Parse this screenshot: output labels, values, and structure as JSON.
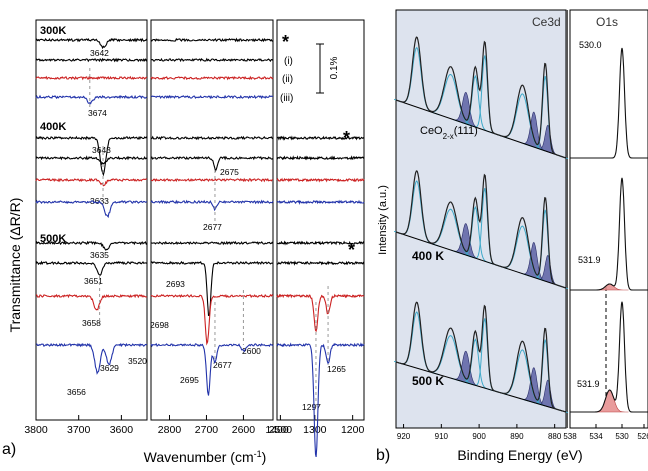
{
  "panel_a": {
    "panel_label": "a)",
    "y_label": "Transmittance (ΔR/R)",
    "x_label": "Wavenumber (cm",
    "x_label_sup": "-1",
    "x_label_close": ")",
    "scale_bar_label": "0.1%",
    "star": "*",
    "traces_300K": [
      "(i)",
      "(ii)",
      "(iii)"
    ],
    "temperature_labels": [
      "300K",
      "400K",
      "500K"
    ],
    "x_ticks_left": [
      "3800",
      "3700",
      "3600"
    ],
    "x_ticks_mid": [
      "2800",
      "2700",
      "2600",
      "2500"
    ],
    "x_ticks_right": [
      "1400",
      "1300",
      "1200"
    ],
    "peak_labels": {
      "p300_3642": "3642",
      "p300_3674": "3674",
      "p400_3643": "3643",
      "p400_3633": "3633",
      "p400_2675": "2675",
      "p400_2677": "2677",
      "p500_3635": "3635",
      "p500_3651": "3651",
      "p500_3658": "3658",
      "p500_3656": "3656",
      "p500_3629": "3629",
      "p500_3520": "3520",
      "p500_2693": "2693",
      "p500_2698": "2698",
      "p500_2695": "2695",
      "p500_2677": "2677",
      "p500_2600": "2600",
      "p500_1265": "1265",
      "p500_1297": "1297"
    }
  },
  "panel_b": {
    "panel_label": "b)",
    "y_label": "Intensity (a.u.)",
    "x_label": "Binding Energy (eV)",
    "region_ce": "Ce3d",
    "region_o": "O1s",
    "sample_label": "CeO",
    "sample_sub": "2-x",
    "sample_tail": "(111)",
    "label_400": "400 K",
    "label_500": "500 K",
    "o_peak_530": "530.0",
    "o_peak_5319a": "531.9",
    "o_peak_5319b": "531.9",
    "x_ticks_ce": [
      "920",
      "910",
      "900",
      "890",
      "880"
    ],
    "x_ticks_o": [
      "538",
      "534",
      "530",
      "526"
    ]
  },
  "chart_data": [
    {
      "type": "line",
      "panel": "a",
      "title": "",
      "xlabel": "Wavenumber (cm-1)",
      "ylabel": "Transmittance (ΔR/R)",
      "x_axis_reversed": true,
      "x_segments": [
        [
          3800,
          3540
        ],
        [
          2850,
          2520
        ],
        [
          1400,
          1170
        ]
      ],
      "scale_bar_percent": 0.1,
      "series": [
        {
          "temperature": "300K",
          "trace": "*",
          "color": "#000000",
          "peaks": [
            {
              "x": 3642,
              "depth": 0.06
            }
          ]
        },
        {
          "temperature": "300K",
          "trace": "(i)",
          "color": "#000000",
          "peaks": []
        },
        {
          "temperature": "300K",
          "trace": "(ii)",
          "color": "#cc2222",
          "peaks": []
        },
        {
          "temperature": "300K",
          "trace": "(iii)",
          "color": "#2233aa",
          "peaks": [
            {
              "x": 3674,
              "depth": 0.05
            }
          ]
        },
        {
          "temperature": "400K",
          "trace": "*",
          "color": "#000000",
          "peaks": [
            {
              "x": 3643,
              "depth": 0.3
            }
          ]
        },
        {
          "temperature": "400K",
          "trace": "(i)",
          "color": "#000000",
          "peaks": [
            {
              "x": 3643,
              "depth": 0.05
            },
            {
              "x": 2675,
              "depth": 0.1
            }
          ]
        },
        {
          "temperature": "400K",
          "trace": "(ii)",
          "color": "#cc2222",
          "peaks": [
            {
              "x": 3643,
              "depth": 0.04
            }
          ]
        },
        {
          "temperature": "400K",
          "trace": "(iii)",
          "color": "#2233aa",
          "peaks": [
            {
              "x": 3633,
              "depth": 0.12
            },
            {
              "x": 2677,
              "depth": 0.06
            }
          ]
        },
        {
          "temperature": "500K",
          "trace": "*",
          "color": "#000000",
          "peaks": [
            {
              "x": 3635,
              "depth": 0.06
            }
          ]
        },
        {
          "temperature": "500K",
          "trace": "(i)",
          "color": "#000000",
          "peaks": [
            {
              "x": 3651,
              "depth": 0.1
            },
            {
              "x": 2693,
              "depth": 0.45
            }
          ]
        },
        {
          "temperature": "500K",
          "trace": "(ii)",
          "color": "#cc2222",
          "peaks": [
            {
              "x": 3658,
              "depth": 0.12
            },
            {
              "x": 2698,
              "depth": 0.4
            },
            {
              "x": 1297,
              "depth": 0.3
            },
            {
              "x": 1265,
              "depth": 0.15
            }
          ]
        },
        {
          "temperature": "500K",
          "trace": "(iii)",
          "color": "#2233aa",
          "peaks": [
            {
              "x": 3656,
              "depth": 0.23
            },
            {
              "x": 3629,
              "depth": 0.16
            },
            {
              "x": 3520,
              "depth": 0.02
            },
            {
              "x": 2695,
              "depth": 0.42
            },
            {
              "x": 2677,
              "depth": 0.15
            },
            {
              "x": 2600,
              "depth": 0.05
            },
            {
              "x": 1297,
              "depth": 0.93
            },
            {
              "x": 1265,
              "depth": 0.15
            }
          ]
        }
      ]
    },
    {
      "type": "line",
      "panel": "b",
      "title": "",
      "xlabel": "Binding Energy (eV)",
      "ylabel": "Intensity (a.u.)",
      "x_axis_reversed": true,
      "x_segments": [
        [
          922,
          877
        ],
        [
          538,
          526
        ]
      ],
      "series": [
        {
          "name": "CeO2-x(111)",
          "region": "Ce3d",
          "peaks_eV": [
            916.5,
            907.5,
            901,
            898.5,
            888.5,
            882.5
          ]
        },
        {
          "name": "CeO2-x(111)",
          "region": "O1s",
          "peaks_eV": [
            530.0
          ]
        },
        {
          "name": "400 K",
          "region": "Ce3d",
          "peaks_eV": [
            916.5,
            907.5,
            901,
            898.5,
            888.5,
            882.5
          ]
        },
        {
          "name": "400 K",
          "region": "O1s",
          "peaks_eV": [
            530.0,
            531.9
          ]
        },
        {
          "name": "500 K",
          "region": "Ce3d",
          "peaks_eV": [
            916.5,
            907.5,
            901,
            898.5,
            888.5,
            882.5
          ]
        },
        {
          "name": "500 K",
          "region": "O1s",
          "peaks_eV": [
            530.0,
            531.9
          ]
        }
      ]
    }
  ]
}
